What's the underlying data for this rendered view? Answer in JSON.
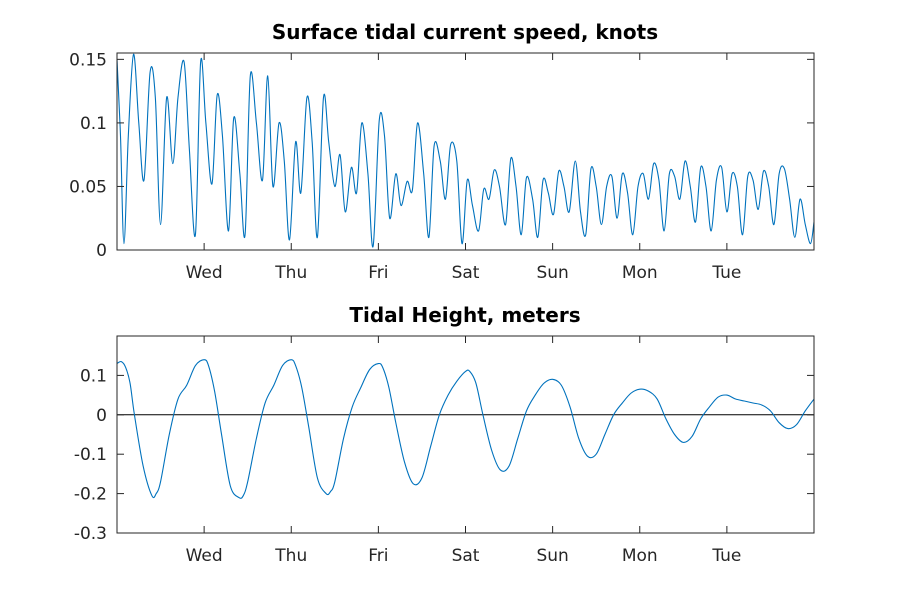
{
  "colors": {
    "line": "#0072bd",
    "zero_line": "#000000",
    "axes": "#262626",
    "background": "#ffffff"
  },
  "chart_data": [
    {
      "type": "line",
      "title": "Surface tidal current speed, knots",
      "xlabel": "",
      "ylabel": "",
      "x_unit": "days",
      "xlim": [
        0,
        8
      ],
      "ylim": [
        0,
        0.155
      ],
      "x_ticks": [
        1,
        2,
        3,
        4,
        5,
        6,
        7
      ],
      "x_tick_labels": [
        "Wed",
        "Thu",
        "Fri",
        "Sat",
        "Sun",
        "Mon",
        "Tue"
      ],
      "y_ticks": [
        0,
        0.05,
        0.1,
        0.15
      ],
      "y_tick_labels": [
        "0",
        "0.05",
        "0.1",
        "0.15"
      ],
      "grid": false,
      "legend": "none",
      "series": [
        {
          "x": [
            0,
            0.04,
            0.08,
            0.13,
            0.19,
            0.25,
            0.31,
            0.38,
            0.44,
            0.5,
            0.57,
            0.64,
            0.7,
            0.77,
            0.83,
            0.9,
            0.96,
            1.02,
            1.09,
            1.15,
            1.21,
            1.28,
            1.34,
            1.41,
            1.47,
            1.53,
            1.6,
            1.67,
            1.73,
            1.79,
            1.86,
            1.92,
            1.98,
            2.05,
            2.11,
            2.18,
            2.24,
            2.3,
            2.37,
            2.43,
            2.5,
            2.56,
            2.62,
            2.69,
            2.75,
            2.81,
            2.88,
            2.94,
            3.01,
            3.07,
            3.13,
            3.2,
            3.26,
            3.33,
            3.39,
            3.45,
            3.52,
            3.58,
            3.64,
            3.71,
            3.77,
            3.83,
            3.9,
            3.96,
            4.02,
            4.08,
            4.15,
            4.21,
            4.27,
            4.33,
            4.39,
            4.46,
            4.52,
            4.58,
            4.64,
            4.7,
            4.77,
            4.83,
            4.89,
            4.95,
            5.01,
            5.07,
            5.13,
            5.19,
            5.26,
            5.32,
            5.38,
            5.44,
            5.5,
            5.56,
            5.62,
            5.68,
            5.74,
            5.8,
            5.86,
            5.92,
            5.98,
            6.04,
            6.1,
            6.16,
            6.22,
            6.28,
            6.34,
            6.4,
            6.46,
            6.52,
            6.58,
            6.64,
            6.7,
            6.76,
            6.82,
            6.88,
            6.94,
            7.0,
            7.06,
            7.12,
            7.18,
            7.24,
            7.3,
            7.36,
            7.42,
            7.48,
            7.54,
            7.6,
            7.66,
            7.72,
            7.78,
            7.84,
            7.9,
            7.96,
            8.0
          ],
          "y": [
            0.15,
            0.09,
            0.005,
            0.09,
            0.154,
            0.1,
            0.055,
            0.14,
            0.12,
            0.02,
            0.12,
            0.068,
            0.12,
            0.148,
            0.08,
            0.012,
            0.148,
            0.1,
            0.052,
            0.122,
            0.09,
            0.015,
            0.104,
            0.06,
            0.012,
            0.137,
            0.1,
            0.055,
            0.137,
            0.05,
            0.1,
            0.07,
            0.008,
            0.085,
            0.045,
            0.12,
            0.085,
            0.01,
            0.12,
            0.085,
            0.05,
            0.075,
            0.03,
            0.065,
            0.045,
            0.1,
            0.06,
            0.003,
            0.102,
            0.09,
            0.025,
            0.06,
            0.035,
            0.054,
            0.047,
            0.1,
            0.06,
            0.01,
            0.082,
            0.07,
            0.04,
            0.083,
            0.07,
            0.005,
            0.055,
            0.035,
            0.015,
            0.048,
            0.04,
            0.063,
            0.05,
            0.02,
            0.072,
            0.05,
            0.012,
            0.057,
            0.04,
            0.01,
            0.055,
            0.045,
            0.028,
            0.062,
            0.05,
            0.03,
            0.07,
            0.03,
            0.012,
            0.064,
            0.05,
            0.02,
            0.05,
            0.058,
            0.025,
            0.06,
            0.045,
            0.012,
            0.05,
            0.06,
            0.04,
            0.068,
            0.055,
            0.015,
            0.06,
            0.058,
            0.04,
            0.07,
            0.05,
            0.022,
            0.065,
            0.05,
            0.015,
            0.055,
            0.065,
            0.03,
            0.06,
            0.05,
            0.012,
            0.058,
            0.055,
            0.032,
            0.062,
            0.05,
            0.02,
            0.06,
            0.064,
            0.04,
            0.01,
            0.04,
            0.02,
            0.005,
            0.022
          ]
        }
      ]
    },
    {
      "type": "line",
      "title": "Tidal Height, meters",
      "xlabel": "",
      "ylabel": "",
      "x_unit": "days",
      "xlim": [
        0,
        8
      ],
      "ylim": [
        -0.3,
        0.2
      ],
      "x_ticks": [
        1,
        2,
        3,
        4,
        5,
        6,
        7
      ],
      "x_tick_labels": [
        "Wed",
        "Thu",
        "Fri",
        "Sat",
        "Sun",
        "Mon",
        "Tue"
      ],
      "y_ticks": [
        -0.3,
        -0.2,
        -0.1,
        0,
        0.1
      ],
      "y_tick_labels": [
        "-0.3",
        "-0.2",
        "-0.1",
        "0",
        "0.1"
      ],
      "grid": false,
      "legend": "none",
      "zero_line": true,
      "series": [
        {
          "x": [
            0,
            0.05,
            0.1,
            0.15,
            0.2,
            0.3,
            0.4,
            0.45,
            0.5,
            0.6,
            0.7,
            0.8,
            0.9,
            1.0,
            1.05,
            1.12,
            1.2,
            1.3,
            1.4,
            1.45,
            1.5,
            1.6,
            1.7,
            1.8,
            1.9,
            2.0,
            2.05,
            2.12,
            2.2,
            2.3,
            2.4,
            2.45,
            2.5,
            2.6,
            2.7,
            2.8,
            2.9,
            3.0,
            3.05,
            3.12,
            3.2,
            3.3,
            3.4,
            3.5,
            3.6,
            3.7,
            3.8,
            3.9,
            4.0,
            4.05,
            4.12,
            4.2,
            4.3,
            4.4,
            4.5,
            4.6,
            4.7,
            4.8,
            4.9,
            5.0,
            5.1,
            5.2,
            5.3,
            5.4,
            5.5,
            5.6,
            5.7,
            5.8,
            5.9,
            6.0,
            6.1,
            6.2,
            6.3,
            6.4,
            6.5,
            6.6,
            6.7,
            6.8,
            6.9,
            7.0,
            7.1,
            7.2,
            7.3,
            7.4,
            7.5,
            7.6,
            7.7,
            7.8,
            7.9,
            8.0
          ],
          "y": [
            0.13,
            0.135,
            0.12,
            0.08,
            0.0,
            -0.13,
            -0.205,
            -0.2,
            -0.17,
            -0.05,
            0.04,
            0.075,
            0.125,
            0.14,
            0.125,
            0.06,
            -0.05,
            -0.18,
            -0.21,
            -0.205,
            -0.17,
            -0.06,
            0.03,
            0.075,
            0.125,
            0.14,
            0.125,
            0.07,
            -0.03,
            -0.16,
            -0.2,
            -0.195,
            -0.17,
            -0.06,
            0.02,
            0.07,
            0.115,
            0.13,
            0.12,
            0.07,
            -0.02,
            -0.12,
            -0.175,
            -0.16,
            -0.08,
            0.0,
            0.05,
            0.085,
            0.11,
            0.11,
            0.08,
            0.0,
            -0.09,
            -0.14,
            -0.13,
            -0.06,
            0.01,
            0.05,
            0.08,
            0.09,
            0.075,
            0.02,
            -0.06,
            -0.105,
            -0.1,
            -0.05,
            0.0,
            0.03,
            0.055,
            0.065,
            0.06,
            0.04,
            -0.01,
            -0.05,
            -0.07,
            -0.055,
            -0.01,
            0.02,
            0.045,
            0.05,
            0.04,
            0.035,
            0.03,
            0.025,
            0.01,
            -0.02,
            -0.035,
            -0.025,
            0.01,
            0.04
          ]
        }
      ]
    }
  ]
}
